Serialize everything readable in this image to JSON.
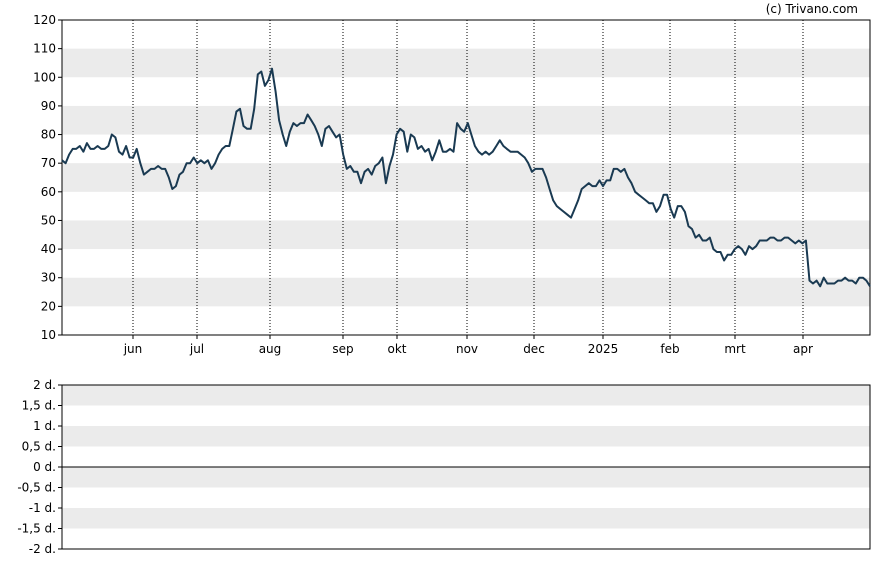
{
  "credit": "(c) Trivano.com",
  "chart_data": [
    {
      "type": "line",
      "ylim": [
        10,
        120
      ],
      "y_ticks": [
        "120",
        "110",
        "100",
        "90",
        "80",
        "70",
        "60",
        "50",
        "40",
        "30",
        "20",
        "10"
      ],
      "x_ticks": [
        "jun",
        "jul",
        "aug",
        "sep",
        "okt",
        "nov",
        "dec",
        "2025",
        "feb",
        "mrt",
        "apr"
      ],
      "bands": "alternating light-grey horizontal bands",
      "vertical_gridlines": "dotted at month ticks",
      "line_color": "#1a3a52",
      "series": [
        {
          "values": [
            71,
            70,
            73,
            75,
            75,
            76,
            74,
            77,
            75,
            75,
            76,
            75,
            75,
            76,
            80,
            79,
            74,
            73,
            76,
            72,
            72,
            75,
            70,
            66,
            67,
            68,
            68,
            69,
            68,
            68,
            65,
            61,
            62,
            66,
            67,
            70,
            70,
            72,
            70,
            71,
            70,
            71,
            68,
            70,
            73,
            75,
            76,
            76,
            82,
            88,
            89,
            83,
            82,
            82,
            89,
            101,
            102,
            97,
            99,
            103,
            95,
            85,
            80,
            76,
            81,
            84,
            83,
            84,
            84,
            87,
            85,
            83,
            80,
            76,
            82,
            83,
            81,
            79,
            80,
            73,
            68,
            69,
            67,
            67,
            63,
            67,
            68,
            66,
            69,
            70,
            72,
            63,
            69,
            73,
            80,
            82,
            81,
            74,
            80,
            79,
            75,
            76,
            74,
            75,
            71,
            74,
            78,
            74,
            74,
            75,
            74,
            84,
            82,
            81,
            84,
            80,
            76,
            74,
            73,
            74,
            73,
            74,
            76,
            78,
            76,
            75,
            74,
            74,
            74,
            73,
            72,
            70,
            67,
            68,
            68,
            68,
            65,
            61,
            57,
            55,
            54,
            53,
            52,
            51,
            54,
            57,
            61,
            62,
            63,
            62,
            62,
            64,
            62,
            64,
            64,
            68,
            68,
            67,
            68,
            65,
            63,
            60,
            59,
            58,
            57,
            56,
            56,
            53,
            55,
            59,
            59,
            54,
            51,
            55,
            55,
            53,
            48,
            47,
            44,
            45,
            43,
            43,
            44,
            40,
            39,
            39,
            36,
            38,
            38,
            40,
            41,
            40,
            38,
            41,
            40,
            41,
            43,
            43,
            43,
            44,
            44,
            43,
            43,
            44,
            44,
            43,
            42,
            43,
            42,
            43,
            29,
            28,
            29,
            27,
            30,
            28,
            28,
            28,
            29,
            29,
            30,
            29,
            29,
            28,
            30,
            30,
            29,
            27
          ]
        }
      ]
    },
    {
      "type": "line",
      "ylim": [
        -2,
        2
      ],
      "y_ticks": [
        "2 d.",
        "1,5 d.",
        "1 d.",
        "0,5 d.",
        "0 d.",
        "-0,5 d.",
        "-1 d.",
        "-1,5 d.",
        "-2 d."
      ],
      "zero_line": true,
      "bands": "alternating light-grey horizontal bands",
      "series": []
    }
  ]
}
